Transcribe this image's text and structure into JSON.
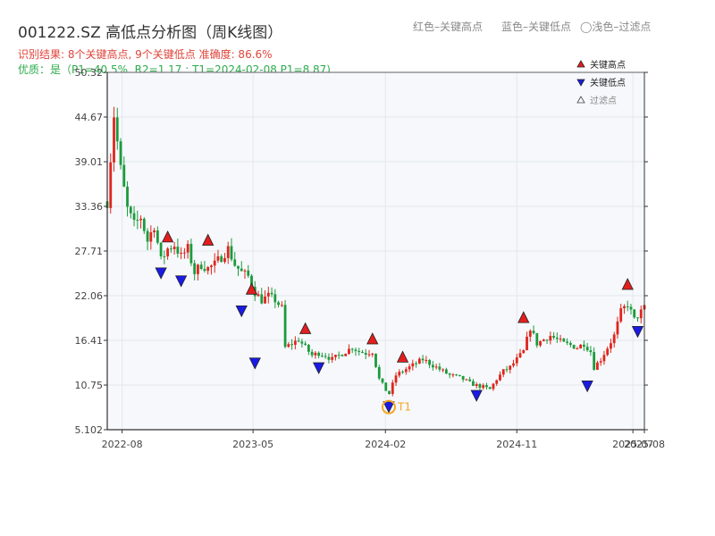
{
  "header": {
    "title": "001222.SZ 高低点分析图（周K线图）",
    "legend_red": "红色–关键高点",
    "legend_blue": "蓝色–关键低点",
    "legend_filtered": "◯浅色–过滤点"
  },
  "info": {
    "line1": "识别结果: 8个关键高点, 9个关键低点  准确度: 86.6%",
    "line2": "优质：是（P1=40.5%, R2=1.17 ; T1=2024-02-08 P1=8.87)"
  },
  "colors": {
    "up": "#e0251d",
    "down": "#1c9a3c",
    "key_high": "#e31e1e",
    "key_low": "#1a1ae6",
    "t1_ring": "#f5a623",
    "plot_bg": "#f6f8fb",
    "grid": "#e3e7ee"
  },
  "chart_data": {
    "type": "candlestick",
    "y_ticks": [
      "5.102",
      "10.75",
      "16.41",
      "22.06",
      "27.71",
      "33.36",
      "39.01",
      "44.67",
      "50.32"
    ],
    "ylim": [
      5.102,
      50.32
    ],
    "x_ticks": [
      "2022-08",
      "2023-05",
      "2024-02",
      "2024-11",
      "2025-07",
      "2025-08"
    ],
    "xlim": [
      "2022-07-01",
      "2025-07-25"
    ],
    "legend": {
      "placement": "top-right",
      "entries": [
        {
          "label": "关键高点",
          "marker": "triangle-up",
          "color": "#e31e1e"
        },
        {
          "label": "关键低点",
          "marker": "triangle-down",
          "color": "#1a1ae6"
        },
        {
          "label": "过滤点",
          "marker": "triangle-up-hollow",
          "color": "#555555"
        }
      ]
    },
    "close_path": [
      [
        "2022-07-01",
        34
      ],
      [
        "2022-07-15",
        45
      ],
      [
        "2022-07-29",
        38
      ],
      [
        "2022-08-12",
        33
      ],
      [
        "2022-08-26",
        31
      ],
      [
        "2022-09-09",
        32
      ],
      [
        "2022-09-23",
        29
      ],
      [
        "2022-10-07",
        31
      ],
      [
        "2022-10-21",
        26.5
      ],
      [
        "2022-11-04",
        28
      ],
      [
        "2022-11-18",
        28.5
      ],
      [
        "2022-12-02",
        27
      ],
      [
        "2022-12-16",
        28
      ],
      [
        "2022-12-30",
        25
      ],
      [
        "2023-01-13",
        26
      ],
      [
        "2023-01-27",
        25.5
      ],
      [
        "2023-02-10",
        26
      ],
      [
        "2023-02-24",
        27
      ],
      [
        "2023-03-10",
        28
      ],
      [
        "2023-03-24",
        26
      ],
      [
        "2023-04-07",
        25
      ],
      [
        "2023-04-21",
        24.5
      ],
      [
        "2023-05-05",
        22.5
      ],
      [
        "2023-05-19",
        21.5
      ],
      [
        "2023-06-02",
        22
      ],
      [
        "2023-06-16",
        21.5
      ],
      [
        "2023-06-30",
        20.5
      ],
      [
        "2023-07-07",
        15.5
      ],
      [
        "2023-07-21",
        16
      ],
      [
        "2023-08-04",
        16.5
      ],
      [
        "2023-08-18",
        15.5
      ],
      [
        "2023-09-01",
        14.5
      ],
      [
        "2023-09-15",
        14.8
      ],
      [
        "2023-09-29",
        14.5
      ],
      [
        "2023-10-13",
        14
      ],
      [
        "2023-10-27",
        14.5
      ],
      [
        "2023-11-10",
        15
      ],
      [
        "2023-11-24",
        15.5
      ],
      [
        "2023-12-08",
        15
      ],
      [
        "2023-12-22",
        14.8
      ],
      [
        "2024-01-05",
        15
      ],
      [
        "2024-01-19",
        11.5
      ],
      [
        "2024-02-08",
        9.5
      ],
      [
        "2024-02-23",
        12
      ],
      [
        "2024-03-08",
        12.5
      ],
      [
        "2024-03-22",
        13
      ],
      [
        "2024-04-05",
        13.5
      ],
      [
        "2024-04-19",
        14
      ],
      [
        "2024-05-03",
        13.5
      ],
      [
        "2024-05-17",
        13
      ],
      [
        "2024-05-31",
        12.5
      ],
      [
        "2024-06-14",
        12
      ],
      [
        "2024-06-28",
        11.8
      ],
      [
        "2024-07-12",
        11.5
      ],
      [
        "2024-07-26",
        11
      ],
      [
        "2024-08-09",
        10.7
      ],
      [
        "2024-08-23",
        10.5
      ],
      [
        "2024-09-06",
        10.2
      ],
      [
        "2024-09-20",
        11.5
      ],
      [
        "2024-10-04",
        12.5
      ],
      [
        "2024-10-18",
        13
      ],
      [
        "2024-11-01",
        14
      ],
      [
        "2024-11-15",
        15
      ],
      [
        "2024-11-29",
        18
      ],
      [
        "2024-12-13",
        16
      ],
      [
        "2024-12-27",
        16.5
      ],
      [
        "2025-01-10",
        17
      ],
      [
        "2025-01-24",
        16.5
      ],
      [
        "2025-02-07",
        16
      ],
      [
        "2025-02-21",
        15.8
      ],
      [
        "2025-03-07",
        15.5
      ],
      [
        "2025-03-21",
        16
      ],
      [
        "2025-04-04",
        15
      ],
      [
        "2025-04-11",
        13
      ],
      [
        "2025-04-25",
        14
      ],
      [
        "2025-05-09",
        15.5
      ],
      [
        "2025-05-23",
        17
      ],
      [
        "2025-06-06",
        20
      ],
      [
        "2025-06-20",
        21
      ],
      [
        "2025-06-27",
        20
      ],
      [
        "2025-07-04",
        19
      ],
      [
        "2025-07-11",
        19.5
      ],
      [
        "2025-07-18",
        20
      ],
      [
        "2025-07-25",
        20.5
      ]
    ],
    "key_highs": [
      {
        "date": "2022-11-04",
        "price": 28.4
      },
      {
        "date": "2023-01-27",
        "price": 28.0
      },
      {
        "date": "2023-04-28",
        "price": 21.8
      },
      {
        "date": "2023-08-18",
        "price": 16.8
      },
      {
        "date": "2024-01-05",
        "price": 15.5
      },
      {
        "date": "2024-03-08",
        "price": 13.2
      },
      {
        "date": "2024-11-15",
        "price": 18.2
      },
      {
        "date": "2025-06-20",
        "price": 22.4
      }
    ],
    "key_lows": [
      {
        "date": "2022-10-21",
        "price": 25.8
      },
      {
        "date": "2022-12-02",
        "price": 24.8
      },
      {
        "date": "2023-04-07",
        "price": 21.0
      },
      {
        "date": "2023-05-05",
        "price": 14.4
      },
      {
        "date": "2023-09-15",
        "price": 13.8
      },
      {
        "date": "2024-02-08",
        "price": 8.87
      },
      {
        "date": "2024-08-09",
        "price": 10.3
      },
      {
        "date": "2025-03-28",
        "price": 11.5
      },
      {
        "date": "2025-07-11",
        "price": 18.4
      }
    ],
    "t1_marker": {
      "label": "T1",
      "date": "2024-02-08",
      "price": 8.87
    }
  }
}
